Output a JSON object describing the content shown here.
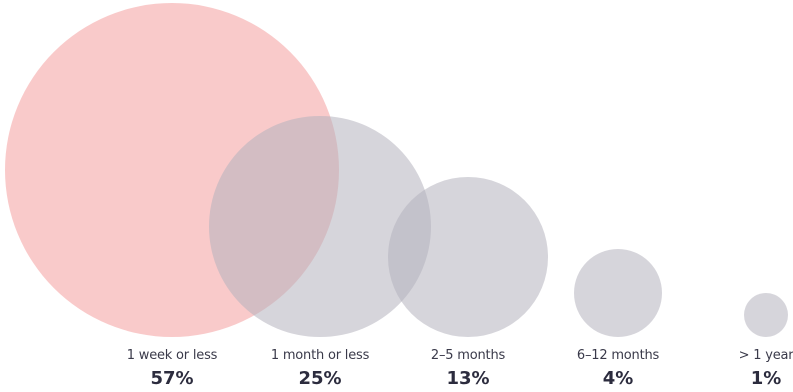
{
  "chart_data": {
    "type": "bubble",
    "title": "",
    "categories": [
      "1 week or less",
      "1 month or less",
      "2–5 months",
      "6–12 months",
      "> 1 year"
    ],
    "values": [
      57,
      25,
      13,
      4,
      1
    ],
    "value_labels": [
      "57%",
      "25%",
      "13%",
      "4%",
      "1%"
    ],
    "unit": "%",
    "colors": {
      "highlight": "#f7b4b4",
      "default": "#b4b2be",
      "label_text": "#3a3a4a",
      "value_text": "#2c2c3e"
    },
    "highlight_index": 0
  }
}
